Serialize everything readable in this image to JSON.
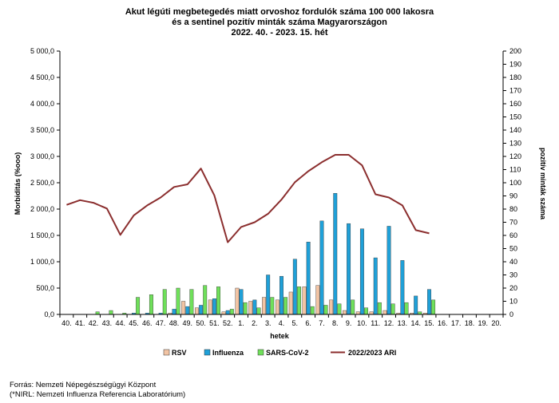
{
  "title_lines": [
    "Akut légúti megbetegedés miatt orvoshoz fordulók száma 100 000 lakosra",
    "és a sentinel pozitív minták száma Magyarországon",
    "2022. 40. - 2023. 15. hét"
  ],
  "footer": {
    "source": "Forrás: Nemzeti Népegészségügyi Központ",
    "note": "(*NIRL: Nemzeti Influenza Referencia Laboratórium)"
  },
  "chart_data": {
    "type": "bar",
    "title": "Akut légúti megbetegedés miatt orvoshoz fordulók száma 100 000 lakosra és a sentinel pozitív minták száma Magyarországon 2022. 40. - 2023. 15. hét",
    "xlabel": "hetek",
    "ylabel": "Morbiditás (%ooo)",
    "y2label": "pozitív minták száma",
    "ylim": [
      0,
      5000
    ],
    "y2lim": [
      0,
      200
    ],
    "grid": false,
    "legend_position": "bottom",
    "categories": [
      "40.",
      "41.",
      "42.",
      "43.",
      "44.",
      "45.",
      "46.",
      "47.",
      "48.",
      "49.",
      "50.",
      "51.",
      "52.",
      "1.",
      "2.",
      "3.",
      "4.",
      "5.",
      "6.",
      "7.",
      "8.",
      "9.",
      "10.",
      "11.",
      "12.",
      "13.",
      "14.",
      "15.",
      "16.",
      "17.",
      "18.",
      "19.",
      "20."
    ],
    "yticks": [
      "0,0",
      "500,0",
      "1 000,0",
      "1 500,0",
      "2 000,0",
      "2 500,0",
      "3 000,0",
      "3 500,0",
      "4 000,0",
      "4 500,0",
      "5 000,0"
    ],
    "y2ticks": [
      "0",
      "10",
      "20",
      "30",
      "40",
      "50",
      "60",
      "70",
      "80",
      "90",
      "100",
      "110",
      "120",
      "130",
      "140",
      "150",
      "160",
      "170",
      "180",
      "190",
      "200"
    ],
    "series": [
      {
        "name": "RSV",
        "axis": "right",
        "kind": "bar",
        "color": "#f2c4a4",
        "values": [
          0,
          0,
          0,
          0,
          0,
          0,
          0,
          0,
          1,
          10,
          5,
          11,
          2,
          20,
          10,
          13,
          11,
          17,
          21,
          22,
          11,
          3,
          2,
          2,
          3,
          1,
          1,
          1,
          0,
          0,
          0,
          0,
          0
        ]
      },
      {
        "name": "Influenza",
        "axis": "right",
        "kind": "bar",
        "color": "#1fa0d8",
        "values": [
          0,
          0,
          0,
          0,
          0,
          1,
          1,
          1,
          4,
          6,
          7,
          12,
          3,
          19,
          11,
          30,
          29,
          42,
          55,
          71,
          92,
          69,
          65,
          43,
          67,
          41,
          14,
          19,
          0,
          0,
          0,
          0,
          0
        ]
      },
      {
        "name": "SARS-CoV-2",
        "axis": "right",
        "kind": "bar",
        "color": "#6fe05a",
        "values": [
          0,
          0,
          2,
          3,
          1,
          13,
          15,
          19,
          20,
          19,
          22,
          21,
          4,
          9,
          5,
          13,
          13,
          21,
          6,
          7,
          8,
          11,
          5,
          9,
          8,
          9,
          2,
          11,
          0,
          0,
          0,
          0,
          0
        ]
      },
      {
        "name": "2022/2023 ARI",
        "axis": "left",
        "kind": "line",
        "color": "#8b2e2e",
        "values": [
          2080,
          2170,
          2120,
          2010,
          1510,
          1880,
          2070,
          2220,
          2420,
          2470,
          2770,
          2260,
          1370,
          1660,
          1750,
          1910,
          2180,
          2510,
          2720,
          2890,
          3030,
          3030,
          2830,
          2280,
          2220,
          2070,
          1600,
          1540,
          null,
          null,
          null,
          null,
          null
        ]
      }
    ]
  }
}
